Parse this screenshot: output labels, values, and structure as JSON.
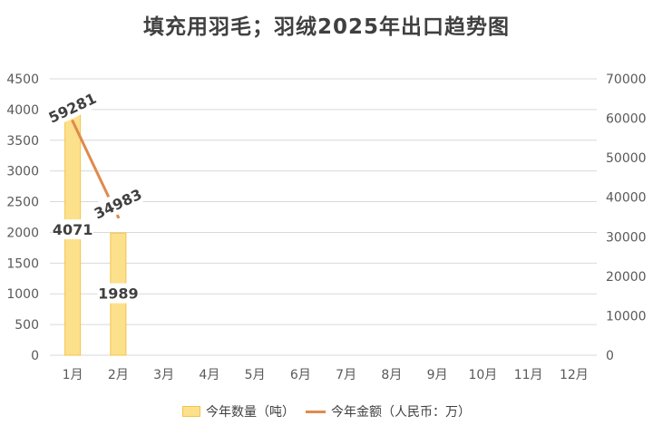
{
  "chart_data": {
    "type": "bar",
    "title": "填充用羽毛；羽绒2025年出口趋势图",
    "categories": [
      "1月",
      "2月",
      "3月",
      "4月",
      "5月",
      "6月",
      "7月",
      "8月",
      "9月",
      "10月",
      "11月",
      "12月"
    ],
    "series": [
      {
        "name": "今年数量（吨）",
        "type": "bar",
        "axis": "left",
        "values": [
          4071,
          1989,
          null,
          null,
          null,
          null,
          null,
          null,
          null,
          null,
          null,
          null
        ],
        "data_labels": [
          "4071",
          "1989"
        ]
      },
      {
        "name": "今年金额（人民币：万）",
        "type": "line",
        "axis": "right",
        "values": [
          59281,
          34983,
          null,
          null,
          null,
          null,
          null,
          null,
          null,
          null,
          null,
          null
        ],
        "data_labels": [
          "59281",
          "34983"
        ]
      }
    ],
    "left_axis": {
      "min": 0,
      "max": 4500,
      "ticks": [
        "0",
        "500",
        "1000",
        "1500",
        "2000",
        "2500",
        "3000",
        "3500",
        "4000",
        "4500"
      ]
    },
    "right_axis": {
      "min": 0,
      "max": 70000,
      "ticks": [
        "0",
        "10000",
        "20000",
        "30000",
        "40000",
        "50000",
        "60000",
        "70000"
      ]
    },
    "grid": true,
    "legend_position": "bottom"
  },
  "colors": {
    "bar_fill": "#fde08b",
    "bar_stroke": "#f2c44d",
    "line": "#e08a4c",
    "grid": "#d9d9d9",
    "axis_text": "#595959",
    "label_text": "#404040"
  }
}
